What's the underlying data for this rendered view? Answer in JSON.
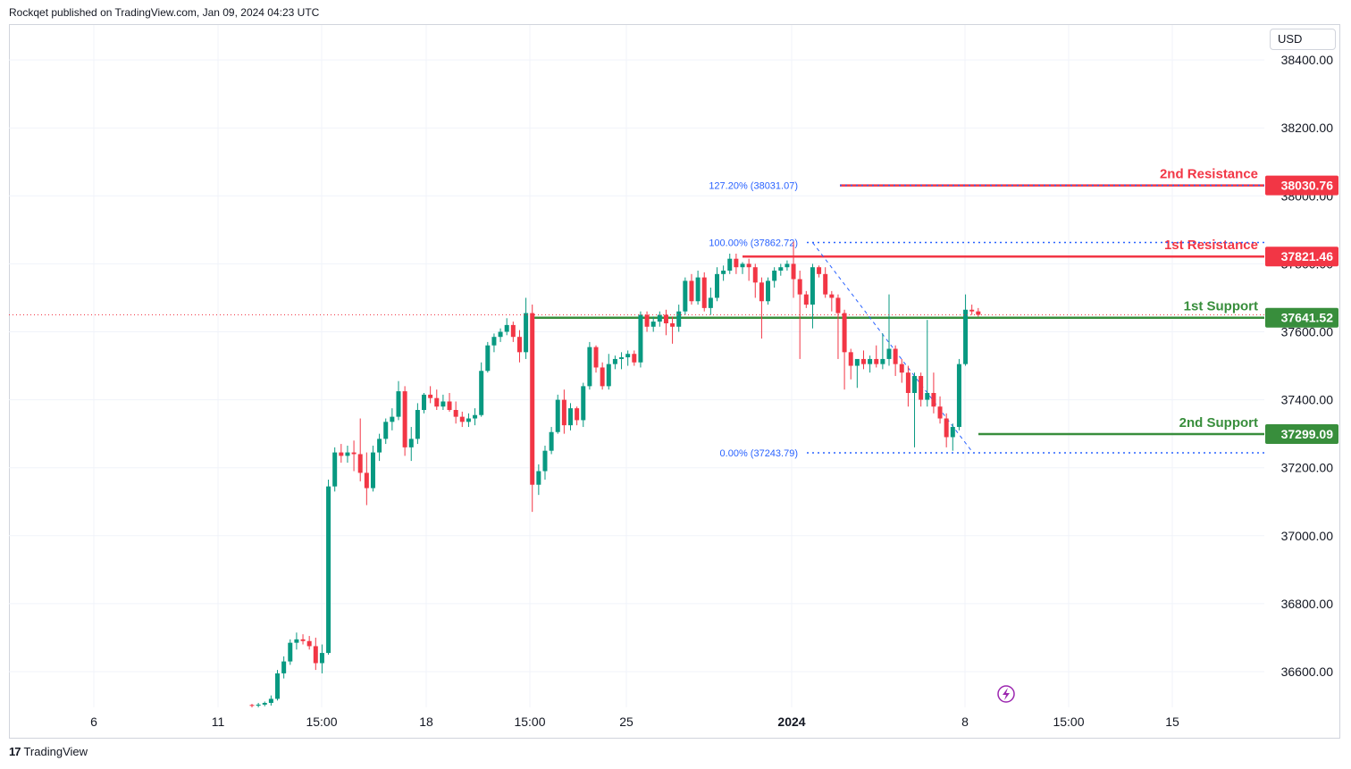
{
  "attribution": "Rockqet published on TradingView.com, Jan 09, 2024 04:23 UTC",
  "footer": {
    "brand": "TradingView"
  },
  "currency": "USD",
  "colors": {
    "up": "#089981",
    "down": "#f23645",
    "resistance": "#f23645",
    "support": "#388e3c",
    "fib": "#2962ff",
    "grid": "#f0f3fa",
    "axis_text": "#131722"
  },
  "chart_data": {
    "type": "candlestick",
    "title": "",
    "ylim": [
      36500,
      38450
    ],
    "y_ticks": [
      36600,
      36800,
      37000,
      37200,
      37400,
      37600,
      37800,
      38000,
      38200,
      38400
    ],
    "y_tick_labels": [
      "36600.00",
      "36800.00",
      "37000.00",
      "37200.00",
      "37400.00",
      "37600.00",
      "37800.00",
      "38000.00",
      "38200.00",
      "38400.00"
    ],
    "x_ticks": [
      {
        "label": "6",
        "bold": false
      },
      {
        "label": "11",
        "bold": false
      },
      {
        "label": "15:00",
        "bold": false
      },
      {
        "label": "18",
        "bold": false
      },
      {
        "label": "15:00",
        "bold": false
      },
      {
        "label": "25",
        "bold": false
      },
      {
        "label": "2024",
        "bold": true
      },
      {
        "label": "8",
        "bold": false
      },
      {
        "label": "15:00",
        "bold": false
      },
      {
        "label": "15",
        "bold": false
      }
    ],
    "levels": [
      {
        "name": "2nd Resistance",
        "value": 38030.76,
        "label": "38030.76",
        "kind": "resistance"
      },
      {
        "name": "1st Resistance",
        "value": 37821.46,
        "label": "37821.46",
        "kind": "resistance"
      },
      {
        "name": "1st Support",
        "value": 37641.52,
        "label": "37641.52",
        "kind": "support"
      },
      {
        "name": "2nd Support",
        "value": 37299.09,
        "label": "37299.09",
        "kind": "support"
      }
    ],
    "fib_levels": [
      {
        "label": "127.20% (38031.07)",
        "value": 38031.07
      },
      {
        "label": "100.00% (37862.72)",
        "value": 37862.72
      },
      {
        "label": "0.00% (37243.79)",
        "value": 37243.79
      }
    ],
    "candles": [
      [
        36502,
        36505,
        36495,
        36500
      ],
      [
        36500,
        36508,
        36495,
        36503
      ],
      [
        36503,
        36512,
        36498,
        36508
      ],
      [
        36508,
        36530,
        36500,
        36520
      ],
      [
        36520,
        36605,
        36515,
        36595
      ],
      [
        36595,
        36645,
        36580,
        36630
      ],
      [
        36630,
        36695,
        36620,
        36685
      ],
      [
        36685,
        36715,
        36665,
        36695
      ],
      [
        36695,
        36710,
        36680,
        36690
      ],
      [
        36690,
        36705,
        36665,
        36675
      ],
      [
        36675,
        36700,
        36605,
        36625
      ],
      [
        36625,
        36680,
        36595,
        36655
      ],
      [
        36655,
        37165,
        36650,
        37145
      ],
      [
        37145,
        37260,
        37130,
        37245
      ],
      [
        37245,
        37270,
        37215,
        37235
      ],
      [
        37235,
        37265,
        37215,
        37245
      ],
      [
        37245,
        37280,
        37190,
        37240
      ],
      [
        37240,
        37345,
        37160,
        37185
      ],
      [
        37185,
        37245,
        37090,
        37140
      ],
      [
        37140,
        37265,
        37130,
        37245
      ],
      [
        37245,
        37300,
        37220,
        37285
      ],
      [
        37285,
        37345,
        37270,
        37335
      ],
      [
        37335,
        37375,
        37310,
        37350
      ],
      [
        37350,
        37455,
        37340,
        37425
      ],
      [
        37425,
        37440,
        37235,
        37260
      ],
      [
        37260,
        37320,
        37220,
        37285
      ],
      [
        37285,
        37390,
        37270,
        37370
      ],
      [
        37370,
        37420,
        37360,
        37415
      ],
      [
        37415,
        37440,
        37390,
        37405
      ],
      [
        37405,
        37430,
        37370,
        37380
      ],
      [
        37380,
        37415,
        37370,
        37395
      ],
      [
        37395,
        37420,
        37365,
        37370
      ],
      [
        37370,
        37395,
        37330,
        37350
      ],
      [
        37350,
        37365,
        37320,
        37335
      ],
      [
        37335,
        37360,
        37320,
        37345
      ],
      [
        37345,
        37375,
        37325,
        37355
      ],
      [
        37355,
        37510,
        37350,
        37485
      ],
      [
        37485,
        37570,
        37480,
        37560
      ],
      [
        37560,
        37595,
        37540,
        37585
      ],
      [
        37585,
        37610,
        37570,
        37600
      ],
      [
        37600,
        37640,
        37590,
        37620
      ],
      [
        37620,
        37630,
        37570,
        37585
      ],
      [
        37585,
        37605,
        37510,
        37540
      ],
      [
        37540,
        37700,
        37520,
        37655
      ],
      [
        37655,
        37680,
        37070,
        37150
      ],
      [
        37150,
        37210,
        37120,
        37190
      ],
      [
        37190,
        37265,
        37165,
        37250
      ],
      [
        37250,
        37320,
        37240,
        37305
      ],
      [
        37305,
        37415,
        37300,
        37400
      ],
      [
        37400,
        37430,
        37300,
        37325
      ],
      [
        37325,
        37390,
        37310,
        37375
      ],
      [
        37375,
        37380,
        37325,
        37340
      ],
      [
        37340,
        37450,
        37320,
        37440
      ],
      [
        37440,
        37570,
        37430,
        37555
      ],
      [
        37555,
        37560,
        37480,
        37495
      ],
      [
        37495,
        37510,
        37430,
        37440
      ],
      [
        37440,
        37535,
        37430,
        37505
      ],
      [
        37505,
        37530,
        37490,
        37520
      ],
      [
        37520,
        37540,
        37490,
        37525
      ],
      [
        37525,
        37545,
        37500,
        37535
      ],
      [
        37535,
        37545,
        37500,
        37510
      ],
      [
        37510,
        37660,
        37495,
        37650
      ],
      [
        37650,
        37660,
        37600,
        37615
      ],
      [
        37615,
        37645,
        37600,
        37630
      ],
      [
        37630,
        37660,
        37615,
        37650
      ],
      [
        37650,
        37665,
        37590,
        37625
      ],
      [
        37625,
        37645,
        37565,
        37615
      ],
      [
        37615,
        37680,
        37600,
        37660
      ],
      [
        37660,
        37760,
        37650,
        37750
      ],
      [
        37750,
        37770,
        37680,
        37690
      ],
      [
        37690,
        37780,
        37680,
        37760
      ],
      [
        37760,
        37775,
        37660,
        37670
      ],
      [
        37670,
        37730,
        37650,
        37700
      ],
      [
        37700,
        37790,
        37690,
        37770
      ],
      [
        37770,
        37795,
        37750,
        37780
      ],
      [
        37780,
        37830,
        37770,
        37815
      ],
      [
        37815,
        37830,
        37770,
        37790
      ],
      [
        37790,
        37805,
        37770,
        37800
      ],
      [
        37800,
        37815,
        37750,
        37790
      ],
      [
        37790,
        37800,
        37700,
        37745
      ],
      [
        37745,
        37760,
        37580,
        37690
      ],
      [
        37690,
        37760,
        37680,
        37750
      ],
      [
        37750,
        37790,
        37730,
        37780
      ],
      [
        37780,
        37800,
        37765,
        37790
      ],
      [
        37790,
        37810,
        37780,
        37800
      ],
      [
        37800,
        37865,
        37700,
        37755
      ],
      [
        37755,
        37780,
        37520,
        37710
      ],
      [
        37710,
        37720,
        37670,
        37680
      ],
      [
        37680,
        37800,
        37610,
        37790
      ],
      [
        37790,
        37795,
        37760,
        37770
      ],
      [
        37770,
        37790,
        37700,
        37710
      ],
      [
        37710,
        37720,
        37660,
        37700
      ],
      [
        37700,
        37710,
        37520,
        37655
      ],
      [
        37655,
        37665,
        37430,
        37540
      ],
      [
        37540,
        37550,
        37460,
        37500
      ],
      [
        37500,
        37510,
        37435,
        37520
      ],
      [
        37520,
        37545,
        37490,
        37505
      ],
      [
        37505,
        37530,
        37480,
        37520
      ],
      [
        37520,
        37560,
        37495,
        37505
      ],
      [
        37505,
        37595,
        37490,
        37520
      ],
      [
        37520,
        37710,
        37500,
        37550
      ],
      [
        37550,
        37560,
        37470,
        37505
      ],
      [
        37505,
        37520,
        37450,
        37480
      ],
      [
        37480,
        37500,
        37380,
        37420
      ],
      [
        37420,
        37480,
        37260,
        37470
      ],
      [
        37470,
        37480,
        37380,
        37400
      ],
      [
        37400,
        37635,
        37380,
        37420
      ],
      [
        37420,
        37480,
        37360,
        37380
      ],
      [
        37380,
        37410,
        37330,
        37345
      ],
      [
        37345,
        37360,
        37260,
        37290
      ],
      [
        37290,
        37330,
        37250,
        37320
      ],
      [
        37320,
        37520,
        37310,
        37505
      ],
      [
        37505,
        37710,
        37500,
        37665
      ],
      [
        37665,
        37680,
        37650,
        37660
      ],
      [
        37660,
        37670,
        37645,
        37650
      ]
    ]
  }
}
